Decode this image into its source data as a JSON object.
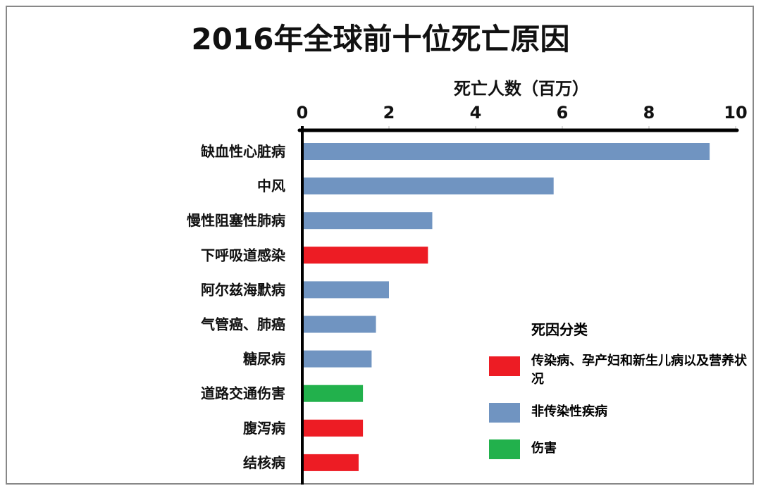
{
  "chart_data": {
    "type": "bar",
    "orientation": "horizontal",
    "title": "2016年全球前十位死亡原因",
    "xlabel": "死亡人数（百万）",
    "ylabel": "",
    "xlim": [
      0,
      10
    ],
    "xticks": [
      "0",
      "2",
      "4",
      "6",
      "8",
      "10"
    ],
    "grid": false,
    "categories": [
      "缺血性心脏病",
      "中风",
      "慢性阻塞性肺病",
      "下呼吸道感染",
      "阿尔兹海默病",
      "气管癌、肺癌",
      "糖尿病",
      "道路交通伤害",
      "腹泻病",
      "结核病"
    ],
    "values": [
      9.4,
      5.8,
      3.0,
      2.9,
      2.0,
      1.7,
      1.6,
      1.4,
      1.4,
      1.3
    ],
    "bar_group": [
      1,
      1,
      1,
      0,
      1,
      1,
      1,
      2,
      0,
      0
    ],
    "legend": {
      "title": "死因分类",
      "placement": "bottom-right",
      "entries": [
        {
          "label": "传染病、孕产妇和新生儿病以及营养状况",
          "color": "#ED1C24"
        },
        {
          "label": "非传染性疾病",
          "color": "#7094C1"
        },
        {
          "label": "伤害",
          "color": "#22B14C"
        }
      ]
    }
  }
}
